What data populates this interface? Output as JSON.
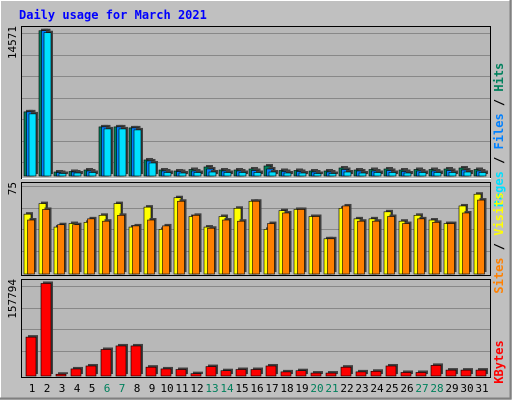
{
  "chart_data": {
    "type": "bar",
    "title": "Daily usage for March 2021",
    "days": [
      1,
      2,
      3,
      4,
      5,
      6,
      7,
      8,
      9,
      10,
      11,
      12,
      13,
      14,
      15,
      16,
      17,
      18,
      19,
      20,
      21,
      22,
      23,
      24,
      25,
      26,
      27,
      28,
      29,
      30,
      31
    ],
    "weekend_days": [
      6,
      7,
      13,
      14,
      20,
      21,
      27,
      28
    ],
    "panels": [
      {
        "name": "hits-files-pages",
        "ymax_label": "14571",
        "ymax": 14571,
        "legend": [
          "Pages",
          "/",
          "Files",
          "/",
          "Hits"
        ],
        "series": [
          {
            "name": "Hits",
            "color": "#00805c",
            "values": [
              6400,
              14500,
              400,
              450,
              600,
              4900,
              4900,
              4800,
              1600,
              600,
              500,
              650,
              900,
              600,
              600,
              700,
              1000,
              550,
              550,
              500,
              500,
              800,
              600,
              650,
              700,
              600,
              650,
              650,
              700,
              800,
              650
            ]
          },
          {
            "name": "Files",
            "color": "#0080ff",
            "values": [
              6400,
              14500,
              350,
              400,
              500,
              4900,
              4900,
              4800,
              1500,
              500,
              450,
              500,
              700,
              500,
              500,
              550,
              700,
              450,
              450,
              400,
              400,
              650,
              500,
              500,
              550,
              450,
              500,
              500,
              550,
              600,
              500
            ]
          },
          {
            "name": "Pages",
            "color": "#00e0ff",
            "values": [
              6200,
              14300,
              250,
              300,
              350,
              4700,
              4700,
              4600,
              1300,
              350,
              300,
              350,
              400,
              350,
              350,
              350,
              400,
              300,
              300,
              250,
              250,
              400,
              300,
              350,
              350,
              300,
              350,
              350,
              350,
              400,
              350
            ]
          }
        ]
      },
      {
        "name": "visits-sites",
        "ymax_label": "75",
        "ymax": 75,
        "legend": [
          "Sites",
          "/",
          "Visits"
        ],
        "series": [
          {
            "name": "Visits",
            "color": "#ffff00",
            "values": [
              51,
              60,
              40,
              43,
              44,
              50,
              60,
              40,
              57,
              38,
              65,
              49,
              40,
              49,
              56,
              62,
              38,
              54,
              55,
              49,
              30,
              56,
              47,
              47,
              53,
              45,
              50,
              46,
              43,
              58,
              68
            ]
          },
          {
            "name": "Sites",
            "color": "#ff8000",
            "values": [
              46,
              55,
              42,
              42,
              47,
              45,
              50,
              41,
              46,
              41,
              62,
              50,
              39,
              46,
              45,
              62,
              43,
              52,
              55,
              49,
              30,
              58,
              45,
              45,
              49,
              43,
              47,
              44,
              43,
              52,
              63
            ]
          }
        ]
      },
      {
        "name": "kbytes",
        "ymax_label": "157794",
        "ymax": 157794,
        "legend": [
          "KBytes"
        ],
        "series": [
          {
            "name": "KBytes",
            "color": "#ff0000",
            "values": [
              66000,
              157000,
              3000,
              12000,
              17000,
              45000,
              51000,
              51000,
              15000,
              12000,
              11000,
              4000,
              16000,
              9000,
              11000,
              11000,
              17000,
              7000,
              9000,
              5000,
              5000,
              15000,
              7000,
              8000,
              17000,
              6000,
              6000,
              18000,
              10000,
              10000,
              10000
            ]
          }
        ]
      }
    ]
  }
}
